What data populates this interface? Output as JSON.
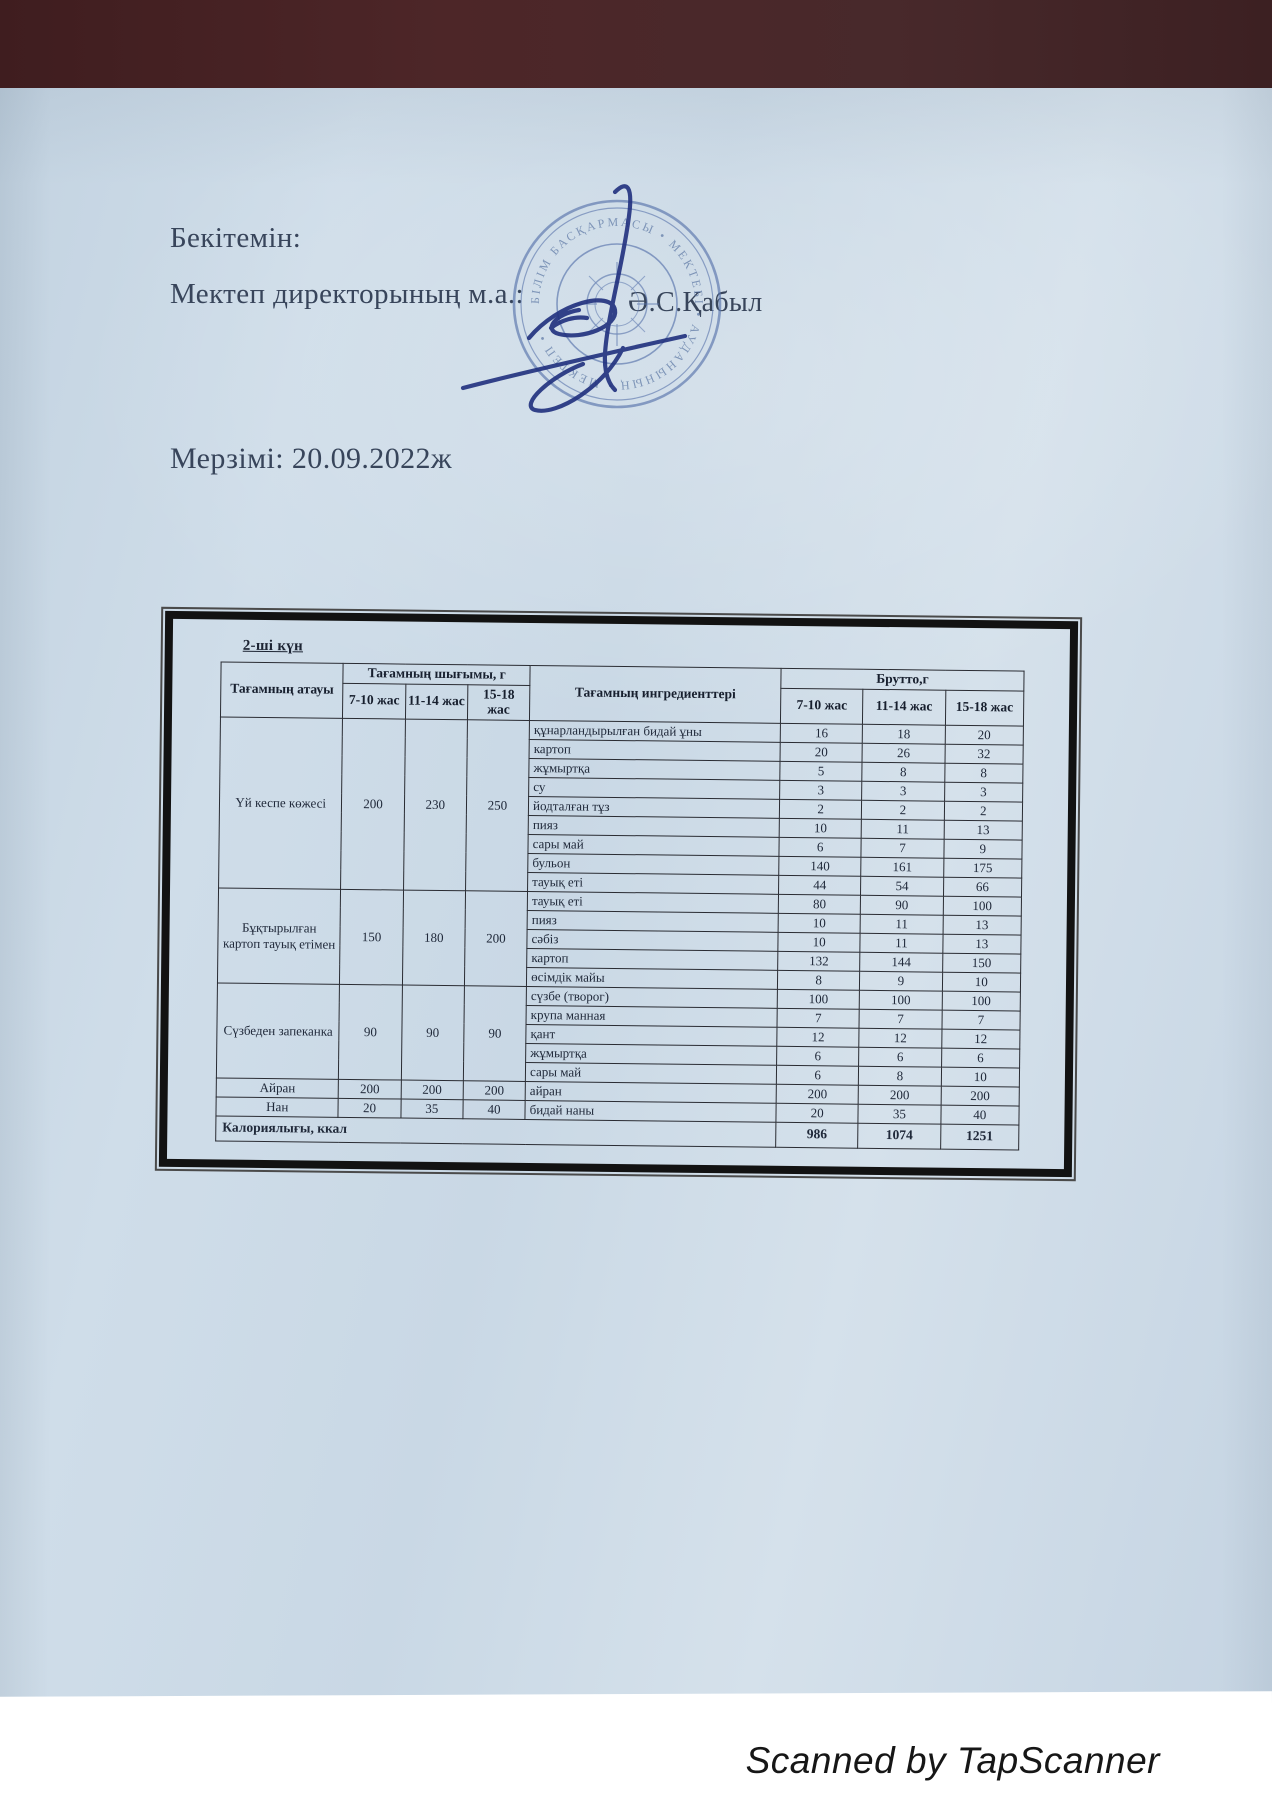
{
  "document": {
    "approve_label": "Бекітемін:",
    "director_line": "Мектеп директорының м.а.:",
    "director_name": "Ә.С.Қабыл",
    "date_line": "Мерзімі: 20.09.2022ж",
    "day_label": "2-ші күн",
    "footer": "Scanned by TapScanner",
    "stamp_ring_text": "БІЛІМ БАСҚАРМАСЫ • МЕКТЕБІ • АУДАНЫНЫҢ • МЕКТЕП •",
    "colors": {
      "top_bar": "#462325",
      "paper": "#cddbe7",
      "stamp_blue": "#5b76ad",
      "signature_blue": "#20307e",
      "table_border": "#2a2c33"
    }
  },
  "table": {
    "headers": {
      "dish": "Тағамның атауы",
      "output": "Тағамның шығымы, г",
      "ingredients": "Тағамның ингредиенттері",
      "brutto": "Брутто,г",
      "age_groups": [
        "7-10 жас",
        "11-14 жас",
        "15-18 жас"
      ]
    },
    "sections": [
      {
        "dish": "Үй кеспе көжесі",
        "output": [
          "200",
          "230",
          "250"
        ],
        "rows": [
          {
            "ingredient": "құнарландырылған бидай ұны",
            "brutto": [
              "16",
              "18",
              "20"
            ]
          },
          {
            "ingredient": "картоп",
            "brutto": [
              "20",
              "26",
              "32"
            ]
          },
          {
            "ingredient": "жұмыртқа",
            "brutto": [
              "5",
              "8",
              "8"
            ]
          },
          {
            "ingredient": "су",
            "brutto": [
              "3",
              "3",
              "3"
            ]
          },
          {
            "ingredient": "йодталған тұз",
            "brutto": [
              "2",
              "2",
              "2"
            ]
          },
          {
            "ingredient": "пияз",
            "brutto": [
              "10",
              "11",
              "13"
            ]
          },
          {
            "ingredient": "сары май",
            "brutto": [
              "6",
              "7",
              "9"
            ]
          },
          {
            "ingredient": "бульон",
            "brutto": [
              "140",
              "161",
              "175"
            ]
          },
          {
            "ingredient": "тауық еті",
            "brutto": [
              "44",
              "54",
              "66"
            ]
          }
        ]
      },
      {
        "dish": "Бұқтырылған картоп тауық етімен",
        "output": [
          "150",
          "180",
          "200"
        ],
        "rows": [
          {
            "ingredient": "тауық еті",
            "brutto": [
              "80",
              "90",
              "100"
            ]
          },
          {
            "ingredient": "пияз",
            "brutto": [
              "10",
              "11",
              "13"
            ]
          },
          {
            "ingredient": "сәбіз",
            "brutto": [
              "10",
              "11",
              "13"
            ]
          },
          {
            "ingredient": "картоп",
            "brutto": [
              "132",
              "144",
              "150"
            ]
          },
          {
            "ingredient": "өсімдік майы",
            "brutto": [
              "8",
              "9",
              "10"
            ]
          }
        ]
      },
      {
        "dish": "Сүзбеден запеканка",
        "output": [
          "90",
          "90",
          "90"
        ],
        "rows": [
          {
            "ingredient": "сүзбе (творог)",
            "brutto": [
              "100",
              "100",
              "100"
            ]
          },
          {
            "ingredient": "крупа манная",
            "brutto": [
              "7",
              "7",
              "7"
            ]
          },
          {
            "ingredient": "қант",
            "brutto": [
              "12",
              "12",
              "12"
            ]
          },
          {
            "ingredient": "жұмыртқа",
            "brutto": [
              "6",
              "6",
              "6"
            ]
          },
          {
            "ingredient": "сары май",
            "brutto": [
              "6",
              "8",
              "10"
            ]
          }
        ]
      },
      {
        "dish": "Айран",
        "output": [
          "200",
          "200",
          "200"
        ],
        "rows": [
          {
            "ingredient": "айран",
            "brutto": [
              "200",
              "200",
              "200"
            ]
          }
        ]
      },
      {
        "dish": "Нан",
        "output": [
          "20",
          "35",
          "40"
        ],
        "rows": [
          {
            "ingredient": "бидай наны",
            "brutto": [
              "20",
              "35",
              "40"
            ]
          }
        ]
      }
    ],
    "footer_row": {
      "label": "Калориялығы, ккал",
      "values": [
        "986",
        "1074",
        "1251"
      ]
    }
  }
}
